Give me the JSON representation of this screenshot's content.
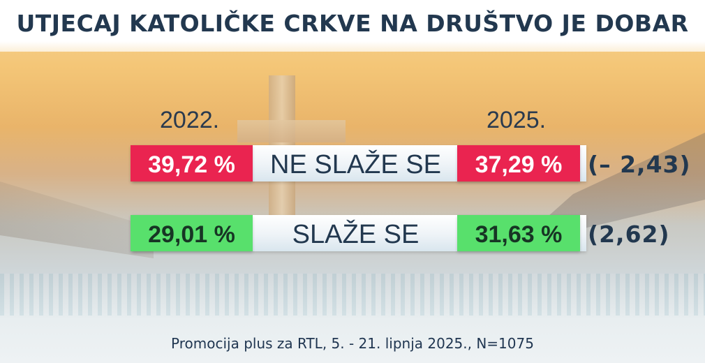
{
  "title": "UTJECAJ KATOLIČKE CRKVE NA DRUŠTVO JE DOBAR",
  "source": "Promocija plus za RTL, 5. - 21. lipnja 2025., N=1075",
  "colors": {
    "disagree": "#ea2450",
    "agree": "#58e06c",
    "text": "#22384f"
  },
  "chart_data": {
    "type": "table",
    "title": "UTJECAJ KATOLIČKE CRKVE NA DRUŠTVO JE DOBAR",
    "columns": [
      "2022.",
      "2025."
    ],
    "rows": [
      {
        "label": "NE SLAŽE SE",
        "values": [
          39.72,
          37.29
        ],
        "display": [
          "39,72 %",
          "37,29 %"
        ],
        "change_display": "(– 2,43)",
        "change": -2.43
      },
      {
        "label": "SLAŽE SE",
        "values": [
          29.01,
          31.63
        ],
        "display": [
          "29,01 %",
          "31,63 %"
        ],
        "change_display": "(2,62)",
        "change": 2.62
      }
    ],
    "unit": "%"
  }
}
